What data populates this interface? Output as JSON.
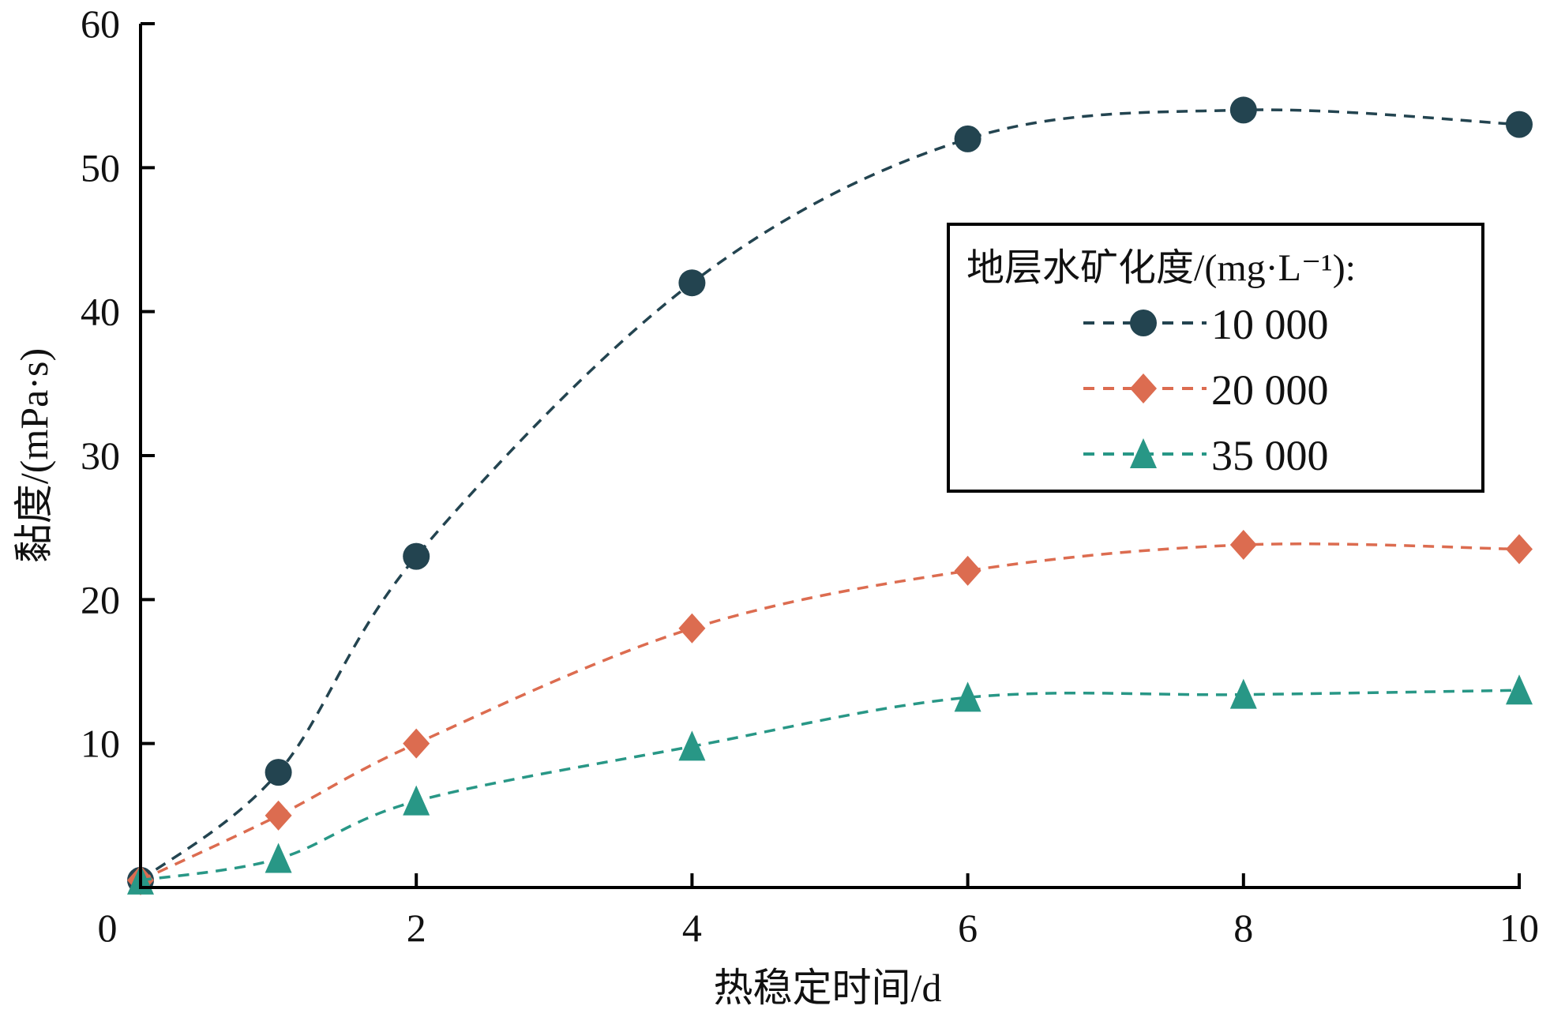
{
  "chart_data": {
    "type": "line",
    "title": "",
    "xlabel": "热稳定时间/d",
    "ylabel": "黏度/(mPa·s)",
    "xlim": [
      0,
      10
    ],
    "ylim": [
      0,
      60
    ],
    "x_ticks": [
      0,
      2,
      4,
      6,
      8,
      10
    ],
    "y_ticks": [
      10,
      20,
      30,
      40,
      50,
      60
    ],
    "origin_label": "0",
    "grid": false,
    "legend": {
      "title": "地层水矿化度/(mg·L⁻¹):",
      "placement": "right-center"
    },
    "x": [
      0,
      1,
      2,
      4,
      6,
      8,
      10
    ],
    "series": [
      {
        "name": "10 000",
        "marker": "circle",
        "color": "#234450",
        "values": [
          0.5,
          8,
          23,
          42,
          52,
          54,
          53
        ]
      },
      {
        "name": "20 000",
        "marker": "diamond",
        "color": "#dc6c50",
        "values": [
          0.5,
          5,
          10,
          18,
          22,
          23.8,
          23.5
        ]
      },
      {
        "name": "35 000",
        "marker": "triangle",
        "color": "#289786",
        "values": [
          0.5,
          2,
          6,
          9.8,
          13.2,
          13.4,
          13.7
        ]
      }
    ]
  }
}
